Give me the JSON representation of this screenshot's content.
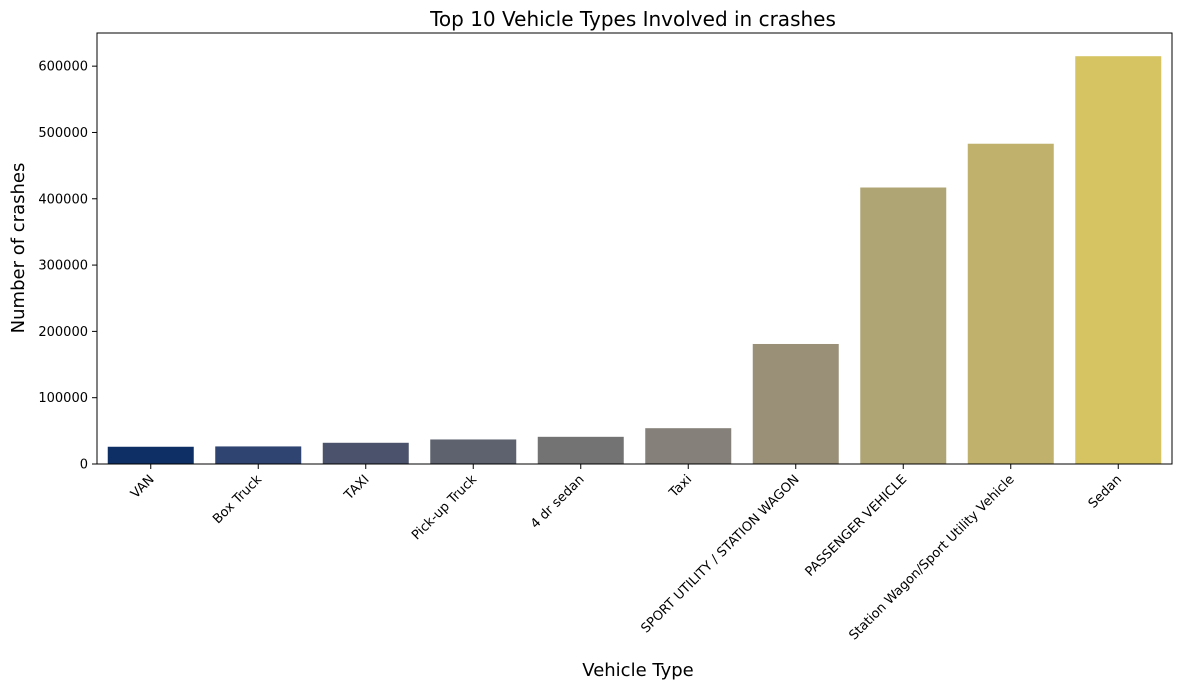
{
  "chart_data": {
    "type": "bar",
    "title": "Top 10 Vehicle Types Involved in crashes",
    "xlabel": "Vehicle Type",
    "ylabel": "Number of crashes",
    "ylim": [
      0,
      650000
    ],
    "yticks": [
      0,
      100000,
      200000,
      300000,
      400000,
      500000,
      600000
    ],
    "ytick_labels": [
      "0",
      "100000",
      "200000",
      "300000",
      "400000",
      "500000",
      "600000"
    ],
    "grid": false,
    "categories": [
      "VAN",
      "Box Truck",
      "TAXI",
      "Pick-up Truck",
      "4 dr sedan",
      "Taxi",
      "SPORT UTILITY / STATION WAGON",
      "PASSENGER VEHICLE",
      "Station Wagon/Sport Utility Vehicle",
      "Sedan"
    ],
    "values": [
      26000,
      26500,
      32000,
      37000,
      41000,
      54000,
      181000,
      417000,
      483000,
      615000
    ],
    "colors": [
      "#0e2f66",
      "#2f4470",
      "#4b536c",
      "#5d626e",
      "#737373",
      "#858079",
      "#9a9078",
      "#afa574",
      "#c0b26d",
      "#d6c462"
    ]
  }
}
